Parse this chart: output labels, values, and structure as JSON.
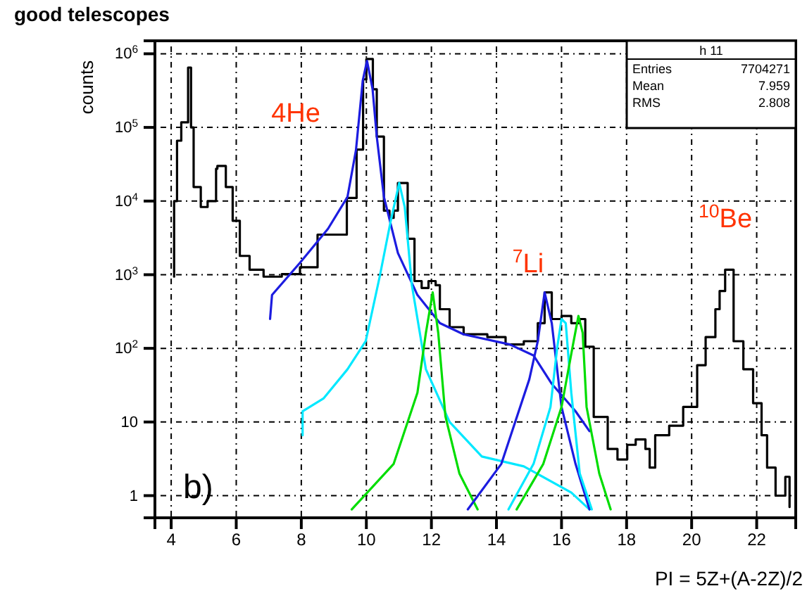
{
  "chart_data": {
    "type": "line",
    "title": "good telescopes",
    "ylabel": "counts",
    "xlabel": "PI = 5Z+(A-2Z)/2",
    "log": true,
    "grid": true,
    "xlim": [
      3.5,
      23.2
    ],
    "ylim": [
      0.5,
      1500000
    ],
    "xticks": [
      4,
      6,
      8,
      10,
      12,
      14,
      16,
      18,
      20,
      22
    ],
    "yticks": [
      1,
      10,
      {
        "value": 100,
        "label": "10$^{2}$"
      },
      {
        "value": 1000,
        "label": "10$^{3}$"
      },
      {
        "value": 10000,
        "label": "10$^{4}$"
      },
      {
        "value": 100000,
        "label": "10$^{5}$"
      },
      {
        "value": 1000000,
        "label": "10$^{6}$"
      }
    ],
    "annotations": [
      "4He",
      "$^{7}$Li",
      "$^{10}$Be",
      "b)",
      "h 11",
      "Entries 7704271",
      "Mean 7.959",
      "RMS 2.808"
    ],
    "series": [
      {
        "type": "step",
        "color": "#000000",
        "x": [
          4.09,
          4.09,
          4.18,
          4.31,
          4.52,
          4.61,
          4.69,
          4.91,
          5.12,
          5.38,
          5.42,
          5.68,
          5.89,
          6.11,
          6.41,
          6.84,
          7.4,
          7.96,
          8.5,
          9.4,
          9.7,
          9.9,
          10.0,
          10.2,
          10.32,
          10.54,
          10.71,
          10.84,
          10.97,
          11.27,
          11.48,
          11.7,
          11.91,
          12.13,
          12.26,
          12.56,
          12.99,
          13.72,
          14.28,
          14.84,
          15.27,
          15.48,
          15.7,
          16.0,
          16.3,
          16.56,
          16.73,
          16.99,
          17.42,
          17.72,
          18.02,
          18.28,
          18.58,
          18.71,
          18.88,
          19.31,
          19.74,
          20.17,
          20.43,
          20.73,
          20.86,
          21.03,
          21.29,
          21.59,
          21.89,
          22.15,
          22.32,
          22.58,
          22.88,
          23.01
        ],
        "values": [
          940,
          10000,
          66000,
          117000,
          650000,
          100000,
          15500,
          8300,
          10000,
          27500,
          30000,
          15500,
          5400,
          1800,
          1170,
          940,
          1020,
          1260,
          3500,
          11000,
          50000,
          450000,
          850000,
          330000,
          75000,
          7400,
          5900,
          7400,
          17600,
          3080,
          820,
          660,
          820,
          720,
          340,
          194,
          155,
          142,
          113,
          125,
          220,
          575,
          250,
          275,
          220,
          250,
          105,
          11.7,
          4.3,
          3.1,
          4.9,
          5.8,
          4.3,
          2.4,
          6.6,
          8.9,
          16,
          59,
          142,
          340,
          600,
          1170,
          125,
          52,
          18,
          6.6,
          2.4,
          1,
          1.8,
          0.7
        ]
      },
      {
        "color": "#1c1ce0",
        "x": [
          7.04,
          7.1,
          7.96,
          8.82,
          9.42,
          9.68,
          9.89,
          10.02,
          10.19,
          10.32,
          10.54,
          10.97,
          11.57,
          12.26,
          12.99,
          14.41,
          15.14,
          15.7,
          16.43,
          16.86
        ],
        "values": [
          250,
          530,
          1450,
          4200,
          11400,
          49000,
          435000,
          800000,
          335000,
          75000,
          11400,
          1970,
          530,
          220,
          155,
          113,
          80,
          33,
          14,
          7.5
        ]
      },
      {
        "color": "#00e8ff",
        "x": [
          8.04,
          8.04,
          8.69,
          9.42,
          9.98,
          10.41,
          10.75,
          11.01,
          11.18,
          11.4,
          11.83,
          12.56,
          13.55,
          14.84,
          16.3,
          16.86
        ],
        "values": [
          6.6,
          14,
          21,
          52,
          125,
          940,
          5400,
          17600,
          8300,
          720,
          52,
          10,
          3.4,
          2.5,
          1.1,
          0.65
        ]
      },
      {
        "color": "#00dd00",
        "x": [
          9.55,
          10.84,
          11.57,
          11.83,
          12.04,
          12.21,
          12.43,
          12.86,
          13.42
        ],
        "values": [
          0.65,
          2.7,
          25,
          162,
          575,
          162,
          12,
          2.0,
          0.65
        ]
      },
      {
        "color": "#1c1ce0",
        "x": [
          13.12,
          14.15,
          15.01,
          15.27,
          15.48,
          15.7,
          16.0,
          16.43,
          16.86
        ],
        "values": [
          0.65,
          2.7,
          38,
          125,
          575,
          220,
          16,
          2.7,
          0.65
        ]
      },
      {
        "color": "#00e8ff",
        "x": [
          14.37,
          15.14,
          15.66,
          15.87,
          16.0,
          16.13,
          16.3,
          16.56,
          16.93
        ],
        "values": [
          0.65,
          2.7,
          16,
          105,
          250,
          220,
          25,
          2.0,
          0.65
        ]
      },
      {
        "color": "#00dd00",
        "x": [
          14.62,
          15.44,
          16.0,
          16.34,
          16.52,
          16.65,
          16.77,
          17.16,
          17.51
        ],
        "values": [
          0.65,
          2.7,
          16,
          105,
          275,
          162,
          16,
          2.0,
          0.65
        ]
      }
    ]
  }
}
